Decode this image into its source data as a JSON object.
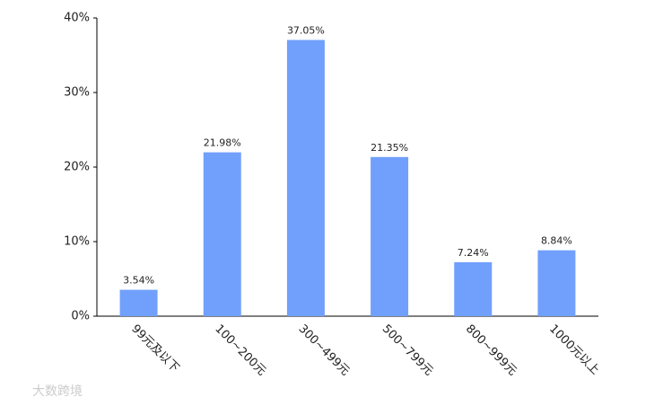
{
  "chart_data": {
    "type": "bar",
    "categories": [
      "99元及以下",
      "100~200元",
      "300~499元",
      "500~799元",
      "800~999元",
      "1000元以上"
    ],
    "values": [
      3.54,
      21.98,
      37.05,
      21.35,
      7.24,
      8.84
    ],
    "value_labels": [
      "3.54%",
      "21.98%",
      "37.05%",
      "21.35%",
      "7.24%",
      "8.84%"
    ],
    "color": "#71a0fc",
    "ylim": [
      0,
      40
    ],
    "yticks": [
      {
        "value": 0,
        "label": "0%"
      },
      {
        "value": 10,
        "label": "10%"
      },
      {
        "value": 20,
        "label": "20%"
      },
      {
        "value": 30,
        "label": "30%"
      },
      {
        "value": 40,
        "label": "40%"
      }
    ],
    "grid": false
  },
  "watermark": "大数跨境"
}
